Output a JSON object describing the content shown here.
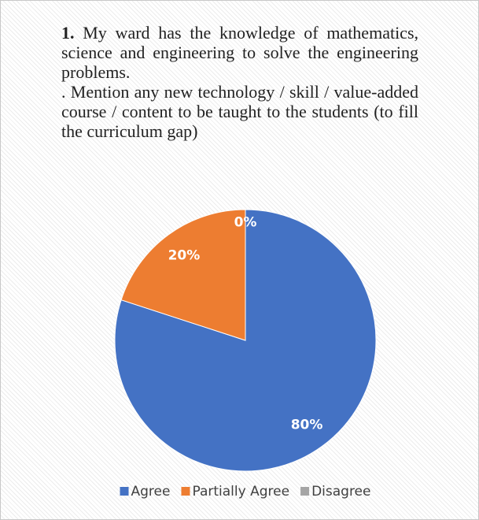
{
  "chart_data": {
    "type": "pie",
    "title_number": "1.",
    "title": "My ward has the knowledge of mathematics, science and engineering to solve the engineering problems.",
    "subtitle": ". Mention any new technology / skill / value-added course / content to be taught to the students (to fill the curriculum gap)",
    "categories": [
      "Agree",
      "Partially Agree",
      "Disagree"
    ],
    "values": [
      80,
      20,
      0
    ],
    "value_labels": [
      "80%",
      "20%",
      "0%"
    ],
    "colors": [
      "#4472c4",
      "#ed7d31",
      "#a5a5a5"
    ],
    "legend": "bottom"
  }
}
